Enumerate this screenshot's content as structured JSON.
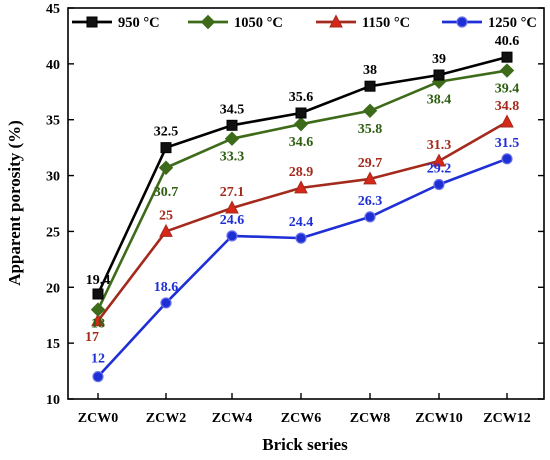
{
  "chart_data": {
    "type": "line",
    "title": "",
    "xlabel": "Brick series",
    "ylabel": "Apparent porosity (%)",
    "categories": [
      "ZCW0",
      "ZCW2",
      "ZCW4",
      "ZCW6",
      "ZCW8",
      "ZCW10",
      "ZCW12"
    ],
    "ylim": [
      10,
      45
    ],
    "yticks": [
      10,
      15,
      20,
      25,
      30,
      35,
      40,
      45
    ],
    "grid": false,
    "legend_position": "top",
    "series": [
      {
        "name": "950 °C",
        "values": [
          19.4,
          32.5,
          34.5,
          35.6,
          38,
          39,
          40.6
        ],
        "labels": [
          "19.4",
          "32.5",
          "34.5",
          "35.6",
          "38",
          "39",
          "40.6"
        ],
        "color": "#000000",
        "label_color": "#000000",
        "marker": "square"
      },
      {
        "name": "1050 °C",
        "values": [
          18,
          30.7,
          33.3,
          34.6,
          35.8,
          38.4,
          39.4
        ],
        "labels": [
          "18",
          "30.7",
          "33.3",
          "34.6",
          "35.8",
          "38.4",
          "39.4"
        ],
        "color": "#3d6b1a",
        "label_color": "#2e5e12",
        "marker": "diamond"
      },
      {
        "name": "1150 °C",
        "values": [
          17,
          25,
          27.1,
          28.9,
          29.7,
          31.3,
          34.8
        ],
        "labels": [
          "17",
          "25",
          "27.1",
          "28.9",
          "29.7",
          "31.3",
          "34.8"
        ],
        "color": "#a32a1c",
        "label_color": "#a32a1c",
        "marker": "triangle"
      },
      {
        "name": "1250 °C",
        "values": [
          12,
          18.6,
          24.6,
          24.4,
          26.3,
          29.2,
          31.5
        ],
        "labels": [
          "12",
          "18.6",
          "24.6",
          "24.4",
          "26.3",
          "29.2",
          "31.5"
        ],
        "color": "#1f2fd6",
        "label_color": "#1f2fd6",
        "marker": "circle"
      }
    ]
  }
}
